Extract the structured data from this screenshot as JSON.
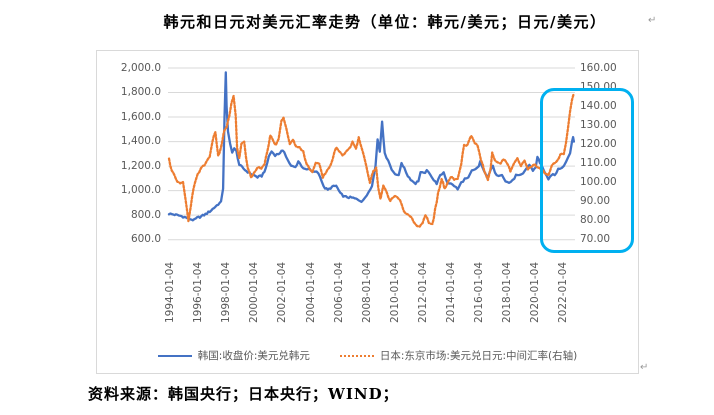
{
  "title": {
    "text": "韩元和日元对美元汇率走势（单位：韩元/美元；日元/美元）"
  },
  "paragraph_mark": "↵",
  "source_note": "资料来源：韩国央行；日本央行；WIND；",
  "chart": {
    "left_axis_labels": [
      "2,000.0",
      "1,800.0",
      "1,600.0",
      "1,400.0",
      "1,200.0",
      "1,000.0",
      "800.0",
      "600.0"
    ],
    "right_axis_labels": [
      "160.00",
      "150.00",
      "140.00",
      "130.00",
      "120.00",
      "110.00",
      "100.00",
      "90.00",
      "80.00",
      "70.00"
    ],
    "x_axis_labels": [
      "1994-01-04",
      "1996-01-04",
      "1998-01-04",
      "2000-01-04",
      "2002-01-04",
      "2004-01-04",
      "2006-01-04",
      "2008-01-04",
      "2010-01-04",
      "2012-01-04",
      "2014-01-04",
      "2016-01-04",
      "2018-01-04",
      "2020-01-04",
      "2022-01-04"
    ],
    "legend": [
      {
        "label": "韩国:收盘价:美元兑韩元",
        "color": "#4472C4",
        "style": "solid"
      },
      {
        "label": "日本:东京市场:美元兑日元:中间汇率(右轴)",
        "color": "#ED7D31",
        "style": "dotted"
      }
    ],
    "gridline_color": "#d9d9d9",
    "axis_text_color": "#595959",
    "highlight_box_color": "#00B0F0"
  },
  "chart_data": {
    "type": "line",
    "title": "韩元和日元对美元汇率走势（单位：韩元/美元；日元/美元）",
    "x_axis": {
      "unit": "date",
      "tick_labels": [
        "1994-01-04",
        "1996-01-04",
        "1998-01-04",
        "2000-01-04",
        "2002-01-04",
        "2004-01-04",
        "2006-01-04",
        "2008-01-04",
        "2010-01-04",
        "2012-01-04",
        "2014-01-04",
        "2016-01-04",
        "2018-01-04",
        "2020-01-04",
        "2022-01-04"
      ],
      "range_years": [
        1994,
        2023
      ]
    },
    "left_y_axis": {
      "label": "韩元/美元",
      "range": [
        600,
        2000
      ],
      "tick_step": 200
    },
    "right_y_axis": {
      "label": "日元/美元",
      "range": [
        70,
        160
      ],
      "tick_step": 10
    },
    "grid": "horizontal",
    "legend_position": "bottom",
    "series": [
      {
        "name": "韩国:收盘价:美元兑韩元",
        "axis": "left",
        "color": "#4472C4",
        "line_style": "solid",
        "points": [
          [
            1994.0,
            812
          ],
          [
            1994.3,
            806
          ],
          [
            1994.6,
            800
          ],
          [
            1994.9,
            792
          ],
          [
            1995.2,
            780
          ],
          [
            1995.5,
            768
          ],
          [
            1995.8,
            760
          ],
          [
            1996.0,
            778
          ],
          [
            1996.3,
            790
          ],
          [
            1996.6,
            808
          ],
          [
            1996.9,
            830
          ],
          [
            1997.2,
            860
          ],
          [
            1997.5,
            890
          ],
          [
            1997.7,
            905
          ],
          [
            1997.85,
            1020
          ],
          [
            1997.95,
            1600
          ],
          [
            1998.04,
            1960
          ],
          [
            1998.1,
            1680
          ],
          [
            1998.2,
            1480
          ],
          [
            1998.35,
            1390
          ],
          [
            1998.5,
            1310
          ],
          [
            1998.65,
            1340
          ],
          [
            1998.8,
            1320
          ],
          [
            1999.0,
            1210
          ],
          [
            1999.2,
            1190
          ],
          [
            1999.5,
            1160
          ],
          [
            1999.8,
            1140
          ],
          [
            2000.0,
            1128
          ],
          [
            2000.3,
            1110
          ],
          [
            2000.6,
            1120
          ],
          [
            2000.9,
            1180
          ],
          [
            2001.1,
            1280
          ],
          [
            2001.3,
            1320
          ],
          [
            2001.55,
            1290
          ],
          [
            2001.8,
            1300
          ],
          [
            2002.0,
            1320
          ],
          [
            2002.2,
            1318
          ],
          [
            2002.45,
            1250
          ],
          [
            2002.7,
            1200
          ],
          [
            2003.0,
            1190
          ],
          [
            2003.2,
            1240
          ],
          [
            2003.45,
            1200
          ],
          [
            2003.7,
            1170
          ],
          [
            2004.0,
            1175
          ],
          [
            2004.25,
            1150
          ],
          [
            2004.5,
            1160
          ],
          [
            2004.75,
            1120
          ],
          [
            2005.0,
            1030
          ],
          [
            2005.3,
            1005
          ],
          [
            2005.6,
            1030
          ],
          [
            2005.9,
            1040
          ],
          [
            2006.2,
            975
          ],
          [
            2006.5,
            950
          ],
          [
            2006.8,
            945
          ],
          [
            2007.1,
            940
          ],
          [
            2007.4,
            928
          ],
          [
            2007.7,
            915
          ],
          [
            2007.95,
            936
          ],
          [
            2008.2,
            990
          ],
          [
            2008.45,
            1045
          ],
          [
            2008.7,
            1200
          ],
          [
            2008.85,
            1420
          ],
          [
            2009.0,
            1320
          ],
          [
            2009.17,
            1570
          ],
          [
            2009.35,
            1300
          ],
          [
            2009.6,
            1250
          ],
          [
            2009.85,
            1170
          ],
          [
            2010.1,
            1140
          ],
          [
            2010.35,
            1120
          ],
          [
            2010.55,
            1230
          ],
          [
            2010.75,
            1180
          ],
          [
            2011.0,
            1120
          ],
          [
            2011.3,
            1080
          ],
          [
            2011.55,
            1060
          ],
          [
            2011.75,
            1080
          ],
          [
            2011.9,
            1150
          ],
          [
            2012.1,
            1140
          ],
          [
            2012.35,
            1160
          ],
          [
            2012.6,
            1135
          ],
          [
            2012.85,
            1085
          ],
          [
            2013.05,
            1060
          ],
          [
            2013.3,
            1120
          ],
          [
            2013.55,
            1150
          ],
          [
            2013.8,
            1070
          ],
          [
            2014.05,
            1055
          ],
          [
            2014.3,
            1040
          ],
          [
            2014.55,
            1010
          ],
          [
            2014.8,
            1065
          ],
          [
            2015.05,
            1095
          ],
          [
            2015.3,
            1100
          ],
          [
            2015.55,
            1160
          ],
          [
            2015.8,
            1170
          ],
          [
            2016.05,
            1200
          ],
          [
            2016.15,
            1238
          ],
          [
            2016.4,
            1160
          ],
          [
            2016.65,
            1110
          ],
          [
            2016.9,
            1165
          ],
          [
            2017.05,
            1200
          ],
          [
            2017.2,
            1140
          ],
          [
            2017.45,
            1125
          ],
          [
            2017.7,
            1135
          ],
          [
            2017.95,
            1075
          ],
          [
            2018.2,
            1065
          ],
          [
            2018.45,
            1080
          ],
          [
            2018.7,
            1125
          ],
          [
            2018.95,
            1120
          ],
          [
            2019.2,
            1135
          ],
          [
            2019.45,
            1185
          ],
          [
            2019.65,
            1210
          ],
          [
            2019.9,
            1165
          ],
          [
            2020.1,
            1190
          ],
          [
            2020.22,
            1280
          ],
          [
            2020.4,
            1225
          ],
          [
            2020.6,
            1190
          ],
          [
            2020.8,
            1135
          ],
          [
            2021.0,
            1085
          ],
          [
            2021.2,
            1130
          ],
          [
            2021.45,
            1125
          ],
          [
            2021.7,
            1175
          ],
          [
            2021.95,
            1190
          ],
          [
            2022.1,
            1205
          ],
          [
            2022.25,
            1240
          ],
          [
            2022.4,
            1270
          ],
          [
            2022.55,
            1310
          ],
          [
            2022.68,
            1400
          ],
          [
            2022.76,
            1438
          ],
          [
            2022.82,
            1400
          ]
        ]
      },
      {
        "name": "日本:东京市场:美元兑日元:中间汇率(右轴)",
        "axis": "right",
        "color": "#ED7D31",
        "line_style": "dotted",
        "points": [
          [
            1994.0,
            112
          ],
          [
            1994.2,
            106
          ],
          [
            1994.4,
            103
          ],
          [
            1994.6,
            100
          ],
          [
            1994.8,
            99
          ],
          [
            1995.0,
            100
          ],
          [
            1995.15,
            92
          ],
          [
            1995.3,
            84
          ],
          [
            1995.38,
            80
          ],
          [
            1995.55,
            88
          ],
          [
            1995.75,
            97
          ],
          [
            1995.95,
            102
          ],
          [
            1996.15,
            106
          ],
          [
            1996.4,
            108
          ],
          [
            1996.65,
            110
          ],
          [
            1996.9,
            114
          ],
          [
            1997.1,
            122
          ],
          [
            1997.3,
            127
          ],
          [
            1997.5,
            114
          ],
          [
            1997.7,
            118
          ],
          [
            1997.9,
            127
          ],
          [
            1998.1,
            129
          ],
          [
            1998.3,
            135
          ],
          [
            1998.45,
            141
          ],
          [
            1998.6,
            146
          ],
          [
            1998.75,
            135
          ],
          [
            1998.85,
            118
          ],
          [
            1999.0,
            112
          ],
          [
            1999.15,
            120
          ],
          [
            1999.35,
            121
          ],
          [
            1999.6,
            107
          ],
          [
            1999.85,
            103
          ],
          [
            2000.05,
            105
          ],
          [
            2000.3,
            108
          ],
          [
            2000.55,
            107
          ],
          [
            2000.8,
            110
          ],
          [
            2001.0,
            116
          ],
          [
            2001.2,
            124
          ],
          [
            2001.4,
            122
          ],
          [
            2001.6,
            120
          ],
          [
            2001.8,
            123
          ],
          [
            2002.0,
            132
          ],
          [
            2002.15,
            134
          ],
          [
            2002.35,
            128
          ],
          [
            2002.6,
            120
          ],
          [
            2002.85,
            122
          ],
          [
            2003.05,
            119
          ],
          [
            2003.3,
            118
          ],
          [
            2003.55,
            116
          ],
          [
            2003.8,
            110
          ],
          [
            2004.0,
            107
          ],
          [
            2004.2,
            105
          ],
          [
            2004.45,
            111
          ],
          [
            2004.7,
            110
          ],
          [
            2004.95,
            103
          ],
          [
            2005.15,
            105
          ],
          [
            2005.4,
            107
          ],
          [
            2005.65,
            112
          ],
          [
            2005.9,
            119
          ],
          [
            2006.1,
            116
          ],
          [
            2006.35,
            114
          ],
          [
            2006.6,
            116
          ],
          [
            2006.85,
            118
          ],
          [
            2007.05,
            121
          ],
          [
            2007.3,
            118
          ],
          [
            2007.5,
            123
          ],
          [
            2007.75,
            117
          ],
          [
            2007.95,
            111
          ],
          [
            2008.15,
            105
          ],
          [
            2008.3,
            100
          ],
          [
            2008.55,
            106
          ],
          [
            2008.75,
            108
          ],
          [
            2008.9,
            97
          ],
          [
            2009.05,
            91
          ],
          [
            2009.25,
            99
          ],
          [
            2009.5,
            95
          ],
          [
            2009.75,
            90
          ],
          [
            2009.95,
            92
          ],
          [
            2010.2,
            93
          ],
          [
            2010.45,
            91
          ],
          [
            2010.7,
            85
          ],
          [
            2010.95,
            83
          ],
          [
            2011.15,
            82
          ],
          [
            2011.4,
            80
          ],
          [
            2011.65,
            77
          ],
          [
            2011.85,
            77
          ],
          [
            2012.05,
            78
          ],
          [
            2012.25,
            83
          ],
          [
            2012.5,
            79
          ],
          [
            2012.75,
            78
          ],
          [
            2012.95,
            86
          ],
          [
            2013.15,
            94
          ],
          [
            2013.4,
            102
          ],
          [
            2013.6,
            97
          ],
          [
            2013.85,
            100
          ],
          [
            2014.05,
            103
          ],
          [
            2014.3,
            102
          ],
          [
            2014.55,
            102
          ],
          [
            2014.8,
            110
          ],
          [
            2015.0,
            119
          ],
          [
            2015.25,
            120
          ],
          [
            2015.5,
            124
          ],
          [
            2015.75,
            121
          ],
          [
            2015.95,
            120
          ],
          [
            2016.2,
            112
          ],
          [
            2016.45,
            106
          ],
          [
            2016.7,
            101
          ],
          [
            2016.9,
            108
          ],
          [
            2017.0,
            116
          ],
          [
            2017.2,
            112
          ],
          [
            2017.35,
            111
          ],
          [
            2017.6,
            110
          ],
          [
            2017.85,
            113
          ],
          [
            2018.05,
            110
          ],
          [
            2018.3,
            106
          ],
          [
            2018.55,
            110
          ],
          [
            2018.8,
            113
          ],
          [
            2019.05,
            109
          ],
          [
            2019.3,
            111
          ],
          [
            2019.55,
            107
          ],
          [
            2019.8,
            108
          ],
          [
            2020.05,
            109
          ],
          [
            2020.25,
            108
          ],
          [
            2020.5,
            107
          ],
          [
            2020.75,
            105
          ],
          [
            2021.0,
            103
          ],
          [
            2021.25,
            109
          ],
          [
            2021.5,
            110
          ],
          [
            2021.75,
            113
          ],
          [
            2021.95,
            115
          ],
          [
            2022.1,
            115
          ],
          [
            2022.25,
            121
          ],
          [
            2022.4,
            128
          ],
          [
            2022.55,
            137
          ],
          [
            2022.68,
            143
          ],
          [
            2022.78,
            146
          ]
        ]
      }
    ],
    "annotation": {
      "type": "highlight-box",
      "color": "#00B0F0",
      "description": "Cyan rounded rectangle highlighting the 2021–2022 depreciation surge of both currencies and right-axis labels 140.00 down to 70.00",
      "x_range_years": [
        2020.6,
        2023.2
      ],
      "right_axis_value_range": [
        70,
        147
      ]
    }
  }
}
